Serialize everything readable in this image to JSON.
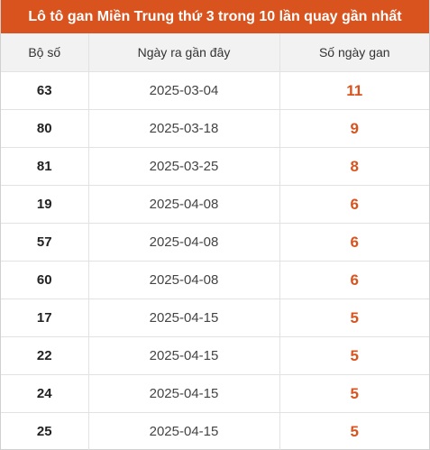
{
  "title": "Lô tô gan Miền Trung thứ 3 trong 10 lần quay gần nhất",
  "colors": {
    "accent": "#d9531e",
    "header_bg": "#f2f2f2"
  },
  "table": {
    "headers": [
      "Bộ số",
      "Ngày ra gần đây",
      "Số ngày gan"
    ],
    "rows": [
      {
        "number": "63",
        "date": "2025-03-04",
        "days": "11"
      },
      {
        "number": "80",
        "date": "2025-03-18",
        "days": "9"
      },
      {
        "number": "81",
        "date": "2025-03-25",
        "days": "8"
      },
      {
        "number": "19",
        "date": "2025-04-08",
        "days": "6"
      },
      {
        "number": "57",
        "date": "2025-04-08",
        "days": "6"
      },
      {
        "number": "60",
        "date": "2025-04-08",
        "days": "6"
      },
      {
        "number": "17",
        "date": "2025-04-15",
        "days": "5"
      },
      {
        "number": "22",
        "date": "2025-04-15",
        "days": "5"
      },
      {
        "number": "24",
        "date": "2025-04-15",
        "days": "5"
      },
      {
        "number": "25",
        "date": "2025-04-15",
        "days": "5"
      }
    ]
  }
}
